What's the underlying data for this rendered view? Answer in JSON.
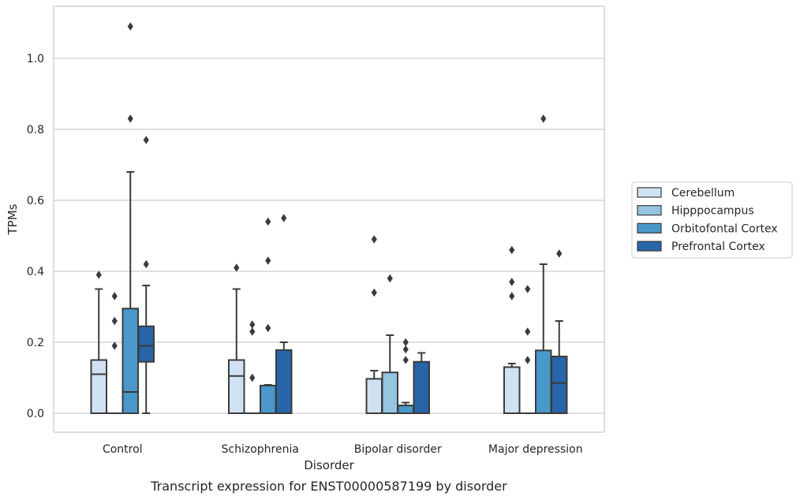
{
  "caption": "Transcript expression for ENST00000587199 by disorder",
  "chart_data": {
    "type": "box",
    "xlabel": "Disorder",
    "ylabel": "TPMs",
    "ylim": [
      -0.05,
      1.145
    ],
    "yticks": [
      "0.0",
      "0.2",
      "0.4",
      "0.6",
      "0.8",
      "1.0"
    ],
    "grid": true,
    "legend_position": "right",
    "categories": [
      "Control",
      "Schizophrenia",
      "Bipolar disorder",
      "Major depression"
    ],
    "series": [
      {
        "name": "Cerebellum",
        "color": "#d0e1f2",
        "boxes": [
          {
            "q1": 0.0,
            "median": 0.11,
            "q3": 0.15,
            "whisker_low": 0.0,
            "whisker_high": 0.35,
            "outliers": [
              0.39
            ]
          },
          {
            "q1": 0.0,
            "median": 0.105,
            "q3": 0.15,
            "whisker_low": 0.0,
            "whisker_high": 0.35,
            "outliers": [
              0.41
            ]
          },
          {
            "q1": 0.0,
            "median": 0.0,
            "q3": 0.097,
            "whisker_low": 0.0,
            "whisker_high": 0.12,
            "outliers": [
              0.34,
              0.49
            ]
          },
          {
            "q1": 0.0,
            "median": 0.0,
            "q3": 0.13,
            "whisker_low": 0.0,
            "whisker_high": 0.14,
            "outliers": [
              0.33,
              0.37,
              0.46
            ]
          }
        ]
      },
      {
        "name": "Hipppocampus",
        "color": "#94c4df",
        "boxes": [
          {
            "q1": 0.0,
            "median": 0.0,
            "q3": 0.0,
            "whisker_low": 0.0,
            "whisker_high": 0.0,
            "outliers": [
              0.19,
              0.26,
              0.33
            ]
          },
          {
            "q1": 0.0,
            "median": 0.0,
            "q3": 0.0,
            "whisker_low": 0.0,
            "whisker_high": 0.0,
            "outliers": [
              0.1,
              0.23,
              0.25
            ]
          },
          {
            "q1": 0.0,
            "median": 0.0,
            "q3": 0.115,
            "whisker_low": 0.0,
            "whisker_high": 0.22,
            "outliers": [
              0.38
            ]
          },
          {
            "q1": 0.0,
            "median": 0.0,
            "q3": 0.0,
            "whisker_low": 0.0,
            "whisker_high": 0.0,
            "outliers": [
              0.15,
              0.23,
              0.35
            ]
          }
        ]
      },
      {
        "name": "Orbitofontal Cortex",
        "color": "#4a98c9",
        "boxes": [
          {
            "q1": 0.0,
            "median": 0.06,
            "q3": 0.295,
            "whisker_low": 0.0,
            "whisker_high": 0.68,
            "outliers": [
              0.83,
              1.09
            ]
          },
          {
            "q1": 0.0,
            "median": 0.0,
            "q3": 0.078,
            "whisker_low": 0.0,
            "whisker_high": 0.08,
            "outliers": [
              0.24,
              0.43,
              0.54
            ]
          },
          {
            "q1": 0.0,
            "median": 0.0,
            "q3": 0.022,
            "whisker_low": 0.0,
            "whisker_high": 0.03,
            "outliers": [
              0.15,
              0.18,
              0.2
            ]
          },
          {
            "q1": 0.0,
            "median": 0.0,
            "q3": 0.177,
            "whisker_low": 0.0,
            "whisker_high": 0.42,
            "outliers": [
              0.83
            ]
          }
        ]
      },
      {
        "name": "Prefrontal Cortex",
        "color": "#2864a8",
        "boxes": [
          {
            "q1": 0.145,
            "median": 0.19,
            "q3": 0.245,
            "whisker_low": 0.0,
            "whisker_high": 0.36,
            "outliers": [
              0.42,
              0.77
            ]
          },
          {
            "q1": 0.0,
            "median": 0.0,
            "q3": 0.178,
            "whisker_low": 0.0,
            "whisker_high": 0.2,
            "outliers": [
              0.55
            ]
          },
          {
            "q1": 0.0,
            "median": 0.0,
            "q3": 0.145,
            "whisker_low": 0.0,
            "whisker_high": 0.17,
            "outliers": []
          },
          {
            "q1": 0.0,
            "median": 0.085,
            "q3": 0.16,
            "whisker_low": 0.0,
            "whisker_high": 0.26,
            "outliers": [
              0.45
            ]
          }
        ]
      }
    ]
  }
}
